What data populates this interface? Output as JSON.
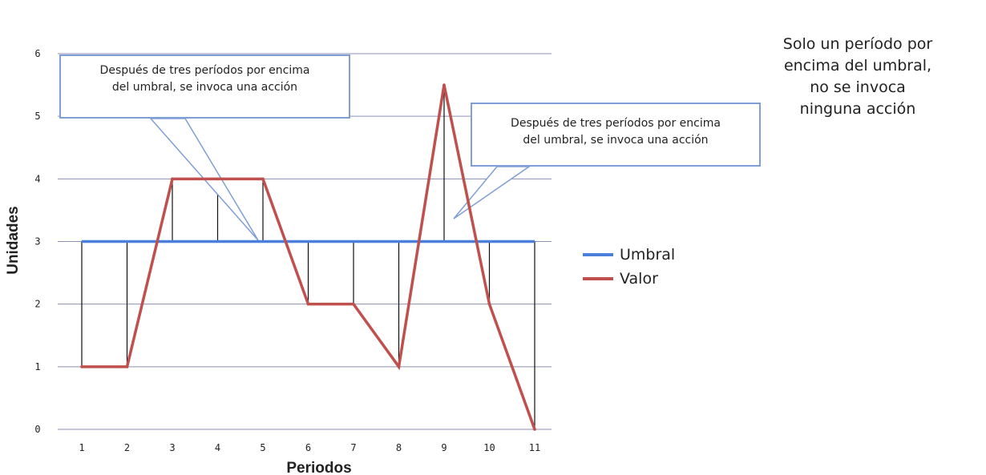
{
  "chart_data": {
    "type": "line",
    "x": [
      1,
      2,
      3,
      4,
      5,
      6,
      7,
      8,
      9,
      10,
      11
    ],
    "categories": [
      "1",
      "2",
      "3",
      "4",
      "5",
      "6",
      "7",
      "8",
      "9",
      "10",
      "11"
    ],
    "series": [
      {
        "name": "Umbral",
        "values": [
          3,
          3,
          3,
          3,
          3,
          3,
          3,
          3,
          3,
          3,
          3
        ]
      },
      {
        "name": "Valor",
        "values": [
          1,
          1,
          4,
          4,
          4,
          2,
          2,
          1,
          5.5,
          2,
          0
        ]
      }
    ],
    "xlabel": "Periodos",
    "ylabel": "Unidades",
    "ylim": [
      0,
      6
    ],
    "yticks": [
      "0",
      "1",
      "2",
      "3",
      "4",
      "5",
      "6"
    ],
    "grid": true,
    "legend_position": "right",
    "colors": {
      "Umbral": "#4a7fdc",
      "Valor": "#c0504d",
      "grid": "#8d8fb0",
      "callout_border": "#7f9ed6"
    },
    "annotations": [
      "Después de tres períodos por encima del umbral, se invoca una acción",
      "Después de tres períodos por encima del umbral, se invoca una acción"
    ]
  },
  "callouts": [
    {
      "line1": "Después de tres períodos por encima",
      "line2": "del umbral, se invoca una acción"
    },
    {
      "line1": "Después de tres períodos por encima",
      "line2": "del umbral, se invoca una acción"
    }
  ],
  "side_note": [
    "Solo un período por",
    "encima del umbral,",
    "no se invoca",
    "ninguna acción"
  ],
  "legend": {
    "threshold": "Umbral",
    "value": "Valor"
  }
}
